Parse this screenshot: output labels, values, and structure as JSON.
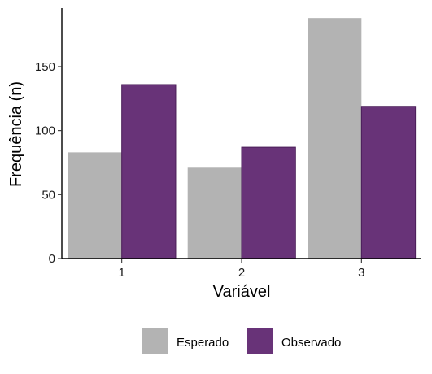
{
  "chart_data": {
    "type": "bar",
    "categories": [
      "1",
      "2",
      "3"
    ],
    "series": [
      {
        "name": "Esperado",
        "values": [
          83,
          71,
          188
        ],
        "color": "#b3b3b3"
      },
      {
        "name": "Observado",
        "values": [
          136,
          87,
          119
        ],
        "color": "#683378"
      }
    ],
    "title": "",
    "xlabel": "Variável",
    "ylabel": "Frequência (n)",
    "ylim": [
      0,
      197
    ],
    "yticks": [
      0,
      50,
      100,
      150
    ],
    "grid": false,
    "legend_position": "bottom"
  }
}
